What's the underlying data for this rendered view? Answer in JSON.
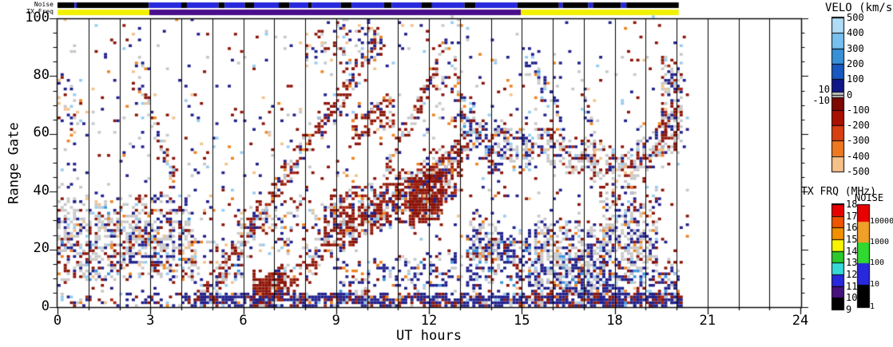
{
  "chart_data": {
    "type": "heatmap",
    "title": "",
    "xlabel": "UT hours",
    "ylabel": "Range Gate",
    "xlim": [
      0,
      24
    ],
    "ylim": [
      0,
      100
    ],
    "x_ticks": [
      0,
      3,
      6,
      9,
      12,
      15,
      18,
      21,
      24
    ],
    "x_minor_step": 1,
    "y_ticks": [
      0,
      20,
      40,
      60,
      80,
      100
    ],
    "y_minor_step": 5,
    "hour_gridlines": true,
    "data_end_hour": 20.05,
    "top_strips": {
      "noise": {
        "label": "Noise",
        "colors": {
          "k": "#000000",
          "b": "#2828dc"
        },
        "segments": [
          [
            0.0,
            0.55,
            "k"
          ],
          [
            0.55,
            0.62,
            "b"
          ],
          [
            0.62,
            2.95,
            "k"
          ],
          [
            2.95,
            4.0,
            "b"
          ],
          [
            4.0,
            4.18,
            "k"
          ],
          [
            4.18,
            5.2,
            "b"
          ],
          [
            5.2,
            5.4,
            "k"
          ],
          [
            5.4,
            6.05,
            "b"
          ],
          [
            6.05,
            6.35,
            "k"
          ],
          [
            6.35,
            7.15,
            "b"
          ],
          [
            7.15,
            7.5,
            "k"
          ],
          [
            7.5,
            8.1,
            "b"
          ],
          [
            8.1,
            8.22,
            "k"
          ],
          [
            8.22,
            9.15,
            "b"
          ],
          [
            9.15,
            9.5,
            "k"
          ],
          [
            9.5,
            10.55,
            "b"
          ],
          [
            10.55,
            10.8,
            "k"
          ],
          [
            10.8,
            11.75,
            "b"
          ],
          [
            11.75,
            12.1,
            "k"
          ],
          [
            12.1,
            13.15,
            "b"
          ],
          [
            13.15,
            13.5,
            "k"
          ],
          [
            13.5,
            14.85,
            "b"
          ],
          [
            14.85,
            16.2,
            "k"
          ],
          [
            16.2,
            16.32,
            "b"
          ],
          [
            16.32,
            17.15,
            "k"
          ],
          [
            17.15,
            17.3,
            "b"
          ],
          [
            17.3,
            18.2,
            "k"
          ],
          [
            18.2,
            18.38,
            "b"
          ],
          [
            18.38,
            20.07,
            "k"
          ]
        ]
      },
      "tx_freq": {
        "label": "TX Freq",
        "colors": {
          "y": "#f0f000",
          "p": "#4a0e8c"
        },
        "segments": [
          [
            0.0,
            2.97,
            "y"
          ],
          [
            2.97,
            14.97,
            "p"
          ],
          [
            14.97,
            20.07,
            "y"
          ]
        ]
      }
    },
    "colorbars": {
      "velo": {
        "title": "VELO (km/s)",
        "tick_labels": [
          "500",
          "400",
          "300",
          "200",
          "100",
          "0",
          "-100",
          "-200",
          "-300",
          "-400",
          "-500"
        ],
        "segments": [
          "#b0dcf8",
          "#78c0f0",
          "#3890d8",
          "#1858c0",
          "#101888",
          "#7c0800",
          "#a81000",
          "#d84010",
          "#ee7820",
          "#f6c089"
        ],
        "zero_band": {
          "color": "#c4c4c4",
          "labels": [
            "10",
            "-10"
          ]
        }
      },
      "txfrq": {
        "title": "TX FRQ (MHz)",
        "tick_labels": [
          "18",
          "17",
          "16",
          "15",
          "14",
          "13",
          "12",
          "11",
          "10",
          "9"
        ],
        "segments": [
          "#e80000",
          "#f05400",
          "#f29000",
          "#f8f400",
          "#2cc82c",
          "#38d8d8",
          "#2828dc",
          "#46127c",
          "#000000"
        ]
      },
      "noise": {
        "title": "NOISE",
        "tick_labels": [
          "10000",
          "1000",
          "100",
          "10",
          "1"
        ],
        "segments": [
          "#e80000",
          "#f0a028",
          "#30d830",
          "#2828dc",
          "#000000"
        ],
        "seg_heights": [
          21,
          26,
          26,
          27,
          28
        ]
      }
    },
    "cells": {
      "dt": 0.1,
      "dg": 1,
      "seed": 20111,
      "colors": {
        "navy": "#20208c",
        "darkred": "#8c1408",
        "red2": "#a82410",
        "gray": "#c8c8c8",
        "lightblue": "#96ccf0",
        "medblue": "#3c96dc",
        "orange": "#f0821e",
        "tan": "#f2c28c"
      },
      "palettes": {
        "mixleft": [
          [
            "gray",
            0.44
          ],
          [
            "navy",
            0.2
          ],
          [
            "darkred",
            0.18
          ],
          [
            "lightblue",
            0.06
          ],
          [
            "medblue",
            0.03
          ],
          [
            "orange",
            0.04
          ],
          [
            "tan",
            0.05
          ]
        ],
        "mix": [
          [
            "navy",
            0.28
          ],
          [
            "darkred",
            0.28
          ],
          [
            "gray",
            0.2
          ],
          [
            "lightblue",
            0.08
          ],
          [
            "orange",
            0.08
          ],
          [
            "tan",
            0.08
          ]
        ],
        "redband": [
          [
            "darkred",
            0.5
          ],
          [
            "red2",
            0.14
          ],
          [
            "gray",
            0.14
          ],
          [
            "navy",
            0.14
          ],
          [
            "orange",
            0.04
          ],
          [
            "lightblue",
            0.04
          ]
        ],
        "solidred": [
          [
            "darkred",
            0.78
          ],
          [
            "red2",
            0.14
          ],
          [
            "navy",
            0.05
          ],
          [
            "gray",
            0.03
          ]
        ],
        "blueband": [
          [
            "navy",
            0.52
          ],
          [
            "gray",
            0.18
          ],
          [
            "darkred",
            0.14
          ],
          [
            "lightblue",
            0.08
          ],
          [
            "orange",
            0.04
          ],
          [
            "medblue",
            0.04
          ]
        ],
        "grayblue": [
          [
            "gray",
            0.5
          ],
          [
            "navy",
            0.3
          ],
          [
            "darkred",
            0.08
          ],
          [
            "lightblue",
            0.06
          ],
          [
            "orange",
            0.06
          ]
        ],
        "grayred": [
          [
            "gray",
            0.4
          ],
          [
            "darkred",
            0.3
          ],
          [
            "navy",
            0.14
          ],
          [
            "red2",
            0.06
          ],
          [
            "tan",
            0.05
          ],
          [
            "lightblue",
            0.05
          ]
        ],
        "bottom": [
          [
            "navy",
            0.62
          ],
          [
            "darkred",
            0.2
          ],
          [
            "red2",
            0.06
          ],
          [
            "gray",
            0.06
          ],
          [
            "lightblue",
            0.03
          ],
          [
            "orange",
            0.03
          ]
        ],
        "noise": [
          [
            "navy",
            0.3
          ],
          [
            "darkred",
            0.26
          ],
          [
            "gray",
            0.2
          ],
          [
            "lightblue",
            0.08
          ],
          [
            "orange",
            0.08
          ],
          [
            "tan",
            0.08
          ]
        ]
      },
      "bands": [
        [
          0.0,
          23,
          4.3,
          24,
          14,
          0.55,
          "mixleft"
        ],
        [
          4.3,
          16,
          5.9,
          14,
          8,
          0.35,
          "mixleft"
        ],
        [
          0.0,
          70,
          0.65,
          70,
          9,
          0.22,
          "mix"
        ],
        [
          2.4,
          84,
          3.7,
          44,
          4,
          0.45,
          "mix"
        ],
        [
          4.5,
          0,
          10.2,
          90,
          5,
          0.5,
          "redband"
        ],
        [
          6.3,
          0,
          13.2,
          55,
          6,
          0.45,
          "redband"
        ],
        [
          8.6,
          28,
          13.0,
          46,
          9,
          0.55,
          "redband"
        ],
        [
          11.35,
          36,
          12.35,
          37,
          9,
          0.9,
          "solidred"
        ],
        [
          6.3,
          6,
          7.4,
          7,
          6,
          0.7,
          "solidred"
        ],
        [
          9.5,
          60,
          10.8,
          68,
          6,
          0.45,
          "redband"
        ],
        [
          10.6,
          48,
          12.2,
          82,
          4,
          0.5,
          "redband"
        ],
        [
          12.9,
          72,
          13.3,
          62,
          8,
          0.35,
          "blueband"
        ],
        [
          13.3,
          62,
          14.2,
          52,
          9,
          0.55,
          "blueband"
        ],
        [
          14.1,
          58,
          15.2,
          52,
          8,
          0.5,
          "grayblue"
        ],
        [
          11.8,
          70,
          13.0,
          70,
          28,
          0.12,
          "mix"
        ],
        [
          15.0,
          88,
          16.2,
          65,
          5,
          0.35,
          "blueband"
        ],
        [
          16.8,
          80,
          17.3,
          58,
          6,
          0.4,
          "blueband"
        ],
        [
          15.3,
          57,
          16.5,
          52,
          6,
          0.45,
          "grayred"
        ],
        [
          16.5,
          52,
          18.5,
          47,
          7,
          0.5,
          "grayred"
        ],
        [
          18.5,
          48,
          20.0,
          62,
          7,
          0.55,
          "grayred"
        ],
        [
          19.5,
          70,
          20.05,
          70,
          17,
          0.5,
          "grayred"
        ],
        [
          15.4,
          18,
          17.6,
          15,
          13,
          0.6,
          "grayblue"
        ],
        [
          17.6,
          22,
          19.3,
          20,
          9,
          0.5,
          "grayblue"
        ],
        [
          13.2,
          14,
          15.2,
          16,
          10,
          0.5,
          "blueband"
        ],
        [
          13.3,
          24,
          14.2,
          22,
          8,
          0.5,
          "grayblue"
        ],
        [
          9.0,
          8,
          13.0,
          12,
          7,
          0.3,
          "blueband"
        ],
        [
          15.3,
          8,
          20.0,
          8,
          9,
          0.45,
          "blueband"
        ],
        [
          4.4,
          1.5,
          20.05,
          1.5,
          2.5,
          0.85,
          "bottom"
        ],
        [
          0.0,
          1.5,
          4.4,
          1.5,
          2.5,
          0.3,
          "bottom"
        ],
        [
          0.0,
          50,
          20.3,
          50,
          50,
          0.05,
          "noise"
        ],
        [
          8.0,
          88,
          10.5,
          95,
          8,
          0.25,
          "mix"
        ],
        [
          17.5,
          35,
          19.5,
          35,
          6,
          0.25,
          "mix"
        ],
        [
          5.8,
          25,
          8.6,
          30,
          9,
          0.22,
          "mix"
        ]
      ]
    }
  }
}
